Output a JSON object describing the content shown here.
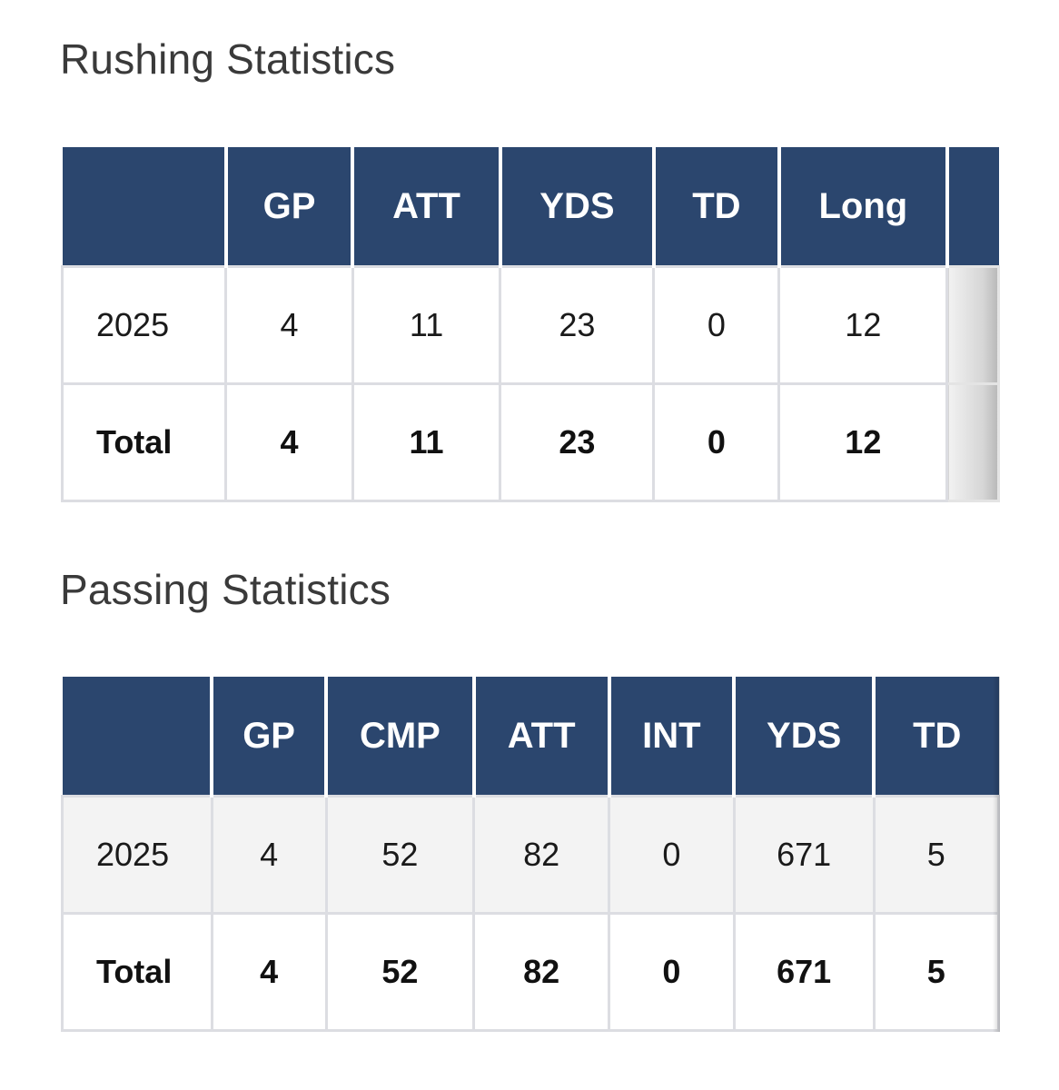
{
  "rushing": {
    "title": "Rushing Statistics",
    "columns": [
      "",
      "GP",
      "ATT",
      "YDS",
      "TD",
      "Long"
    ],
    "rows": [
      {
        "season": "2025",
        "gp": "4",
        "att": "11",
        "yds": "23",
        "td": "0",
        "long": "12"
      }
    ],
    "total": {
      "label": "Total",
      "gp": "4",
      "att": "11",
      "yds": "23",
      "td": "0",
      "long": "12"
    }
  },
  "passing": {
    "title": "Passing Statistics",
    "columns": [
      "",
      "GP",
      "CMP",
      "ATT",
      "INT",
      "YDS",
      "TD"
    ],
    "rows": [
      {
        "season": "2025",
        "gp": "4",
        "cmp": "52",
        "att": "82",
        "int": "0",
        "yds": "671",
        "td": "5"
      }
    ],
    "total": {
      "label": "Total",
      "gp": "4",
      "cmp": "52",
      "att": "82",
      "int": "0",
      "yds": "671",
      "td": "5"
    }
  },
  "colors": {
    "header_bg": "#2b466e",
    "header_text": "#ffffff",
    "cell_border": "#dcdde2",
    "stripe_bg": "#f3f3f3"
  }
}
